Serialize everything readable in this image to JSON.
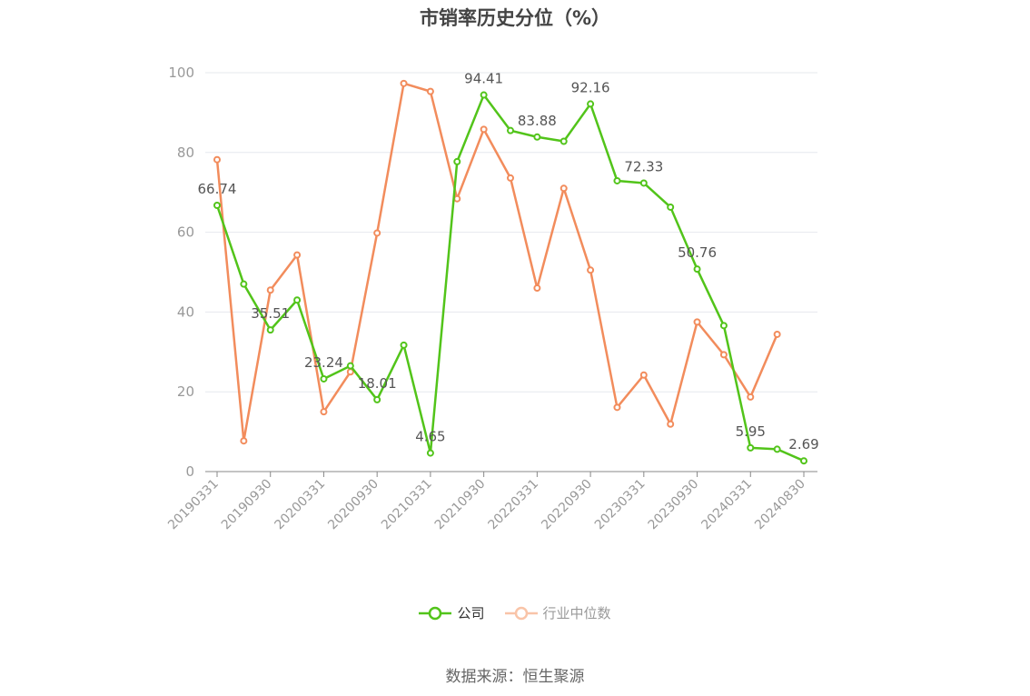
{
  "title": "市销率历史分位（%）",
  "source": "数据来源：恒生聚源",
  "colors": {
    "company": "#52c41a",
    "industry": "#f28c5c",
    "grid": "#e6e8ee",
    "axis": "#999999",
    "label": "#555555"
  },
  "chart_data": {
    "type": "line",
    "title": "市销率历史分位（%）",
    "ylim": [
      0,
      100
    ],
    "yticks": [
      "0",
      "20",
      "40",
      "60",
      "80",
      "100"
    ],
    "grid": true,
    "legend_position": "bottom",
    "x": [
      "20190331",
      "20190630",
      "20190930",
      "20191231",
      "20200331",
      "20200630",
      "20200930",
      "20201231",
      "20210331",
      "20210630",
      "20210930",
      "20211231",
      "20220331",
      "20220630",
      "20220930",
      "20221231",
      "20230331",
      "20230630",
      "20230930",
      "20231231",
      "20240331",
      "20240630",
      "20240830"
    ],
    "xtick_labels": [
      "20190331",
      "20190930",
      "20200331",
      "20200930",
      "20210331",
      "20210930",
      "20220331",
      "20220930",
      "20230331",
      "20230930",
      "20240331",
      "20240830"
    ],
    "series": [
      {
        "name": "公司",
        "values": [
          66.74,
          47.0,
          35.51,
          43.0,
          23.24,
          26.5,
          18.01,
          31.7,
          4.65,
          77.7,
          94.41,
          85.5,
          83.88,
          82.8,
          92.16,
          72.9,
          72.33,
          66.3,
          50.76,
          36.6,
          5.95,
          5.6,
          2.69
        ],
        "labels": [
          "66.74",
          "",
          "35.51",
          "",
          "23.24",
          "",
          "18.01",
          "",
          "4.65",
          "",
          "94.41",
          "",
          "83.88",
          "",
          "92.16",
          "",
          "72.33",
          "",
          "50.76",
          "",
          "5.95",
          "",
          "2.69"
        ]
      },
      {
        "name": "行业中位数",
        "values": [
          78.2,
          7.7,
          45.5,
          54.3,
          15.0,
          25.0,
          59.8,
          97.3,
          95.3,
          68.4,
          85.8,
          73.6,
          46.0,
          71.0,
          50.5,
          16.1,
          24.2,
          11.9,
          37.5,
          29.3,
          18.7,
          34.4,
          null
        ]
      }
    ]
  }
}
